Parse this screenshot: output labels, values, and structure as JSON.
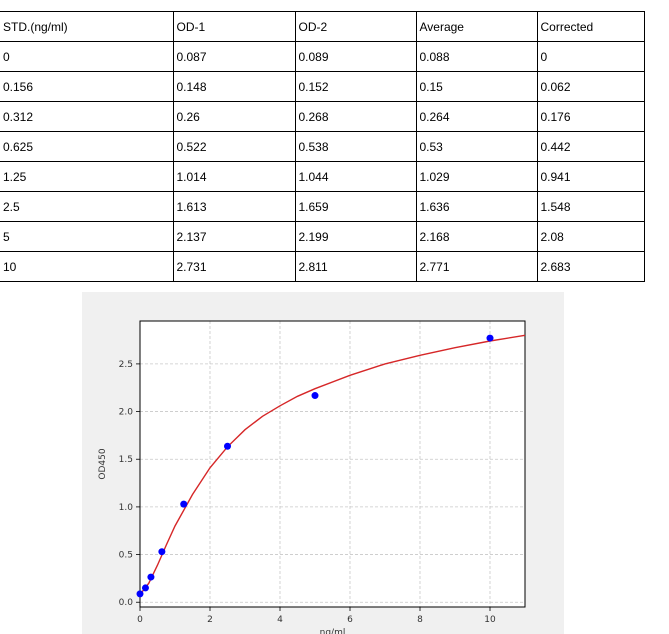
{
  "table": {
    "headers": [
      "STD.(ng/ml)",
      "OD-1",
      "OD-2",
      "Average",
      "Corrected"
    ],
    "rows": [
      [
        "0",
        "0.087",
        "0.089",
        "0.088",
        "0"
      ],
      [
        "0.156",
        "0.148",
        "0.152",
        "0.15",
        "0.062"
      ],
      [
        "0.312",
        "0.26",
        "0.268",
        "0.264",
        "0.176"
      ],
      [
        "0.625",
        "0.522",
        "0.538",
        "0.53",
        "0.442"
      ],
      [
        "1.25",
        "1.014",
        "1.044",
        "1.029",
        "0.941"
      ],
      [
        "2.5",
        "1.613",
        "1.659",
        "1.636",
        "1.548"
      ],
      [
        "5",
        "2.137",
        "2.199",
        "2.168",
        "2.08"
      ],
      [
        "10",
        "2.731",
        "2.811",
        "2.771",
        "2.683"
      ]
    ]
  },
  "chart_data": {
    "type": "scatter",
    "xlabel": "ng/ml",
    "ylabel": "OD450",
    "xlim": [
      0,
      11
    ],
    "ylim": [
      -0.05,
      2.95
    ],
    "xticks": [
      0,
      2,
      4,
      6,
      8,
      10
    ],
    "yticks": [
      0.0,
      0.5,
      1.0,
      1.5,
      2.0,
      2.5
    ],
    "xtick_labels": [
      "0",
      "2",
      "4",
      "6",
      "8",
      "10"
    ],
    "ytick_labels": [
      "0.0",
      "0.5",
      "1.0",
      "1.5",
      "2.0",
      "2.5"
    ],
    "grid": true,
    "series": [
      {
        "x": [
          0,
          0.156,
          0.312,
          0.625,
          1.25,
          2.5,
          5,
          10
        ],
        "y": [
          0.088,
          0.15,
          0.264,
          0.53,
          1.029,
          1.636,
          2.168,
          2.771
        ],
        "color": "#0000ff"
      }
    ],
    "fit_curve": {
      "color": "#d62728",
      "x": [
        0,
        0.25,
        0.5,
        0.75,
        1,
        1.5,
        2,
        2.5,
        3,
        3.5,
        4,
        4.5,
        5,
        6,
        7,
        8,
        9,
        10,
        11
      ],
      "y": [
        0.08,
        0.2,
        0.39,
        0.6,
        0.8,
        1.13,
        1.41,
        1.63,
        1.81,
        1.95,
        2.06,
        2.16,
        2.24,
        2.38,
        2.5,
        2.59,
        2.67,
        2.74,
        2.8
      ]
    }
  },
  "colors": {
    "chart_background": "#f0f0f0",
    "plot_background": "#ffffff",
    "grid": "#c8c8c8",
    "curve": "#d62728",
    "points": "#0000ff"
  }
}
